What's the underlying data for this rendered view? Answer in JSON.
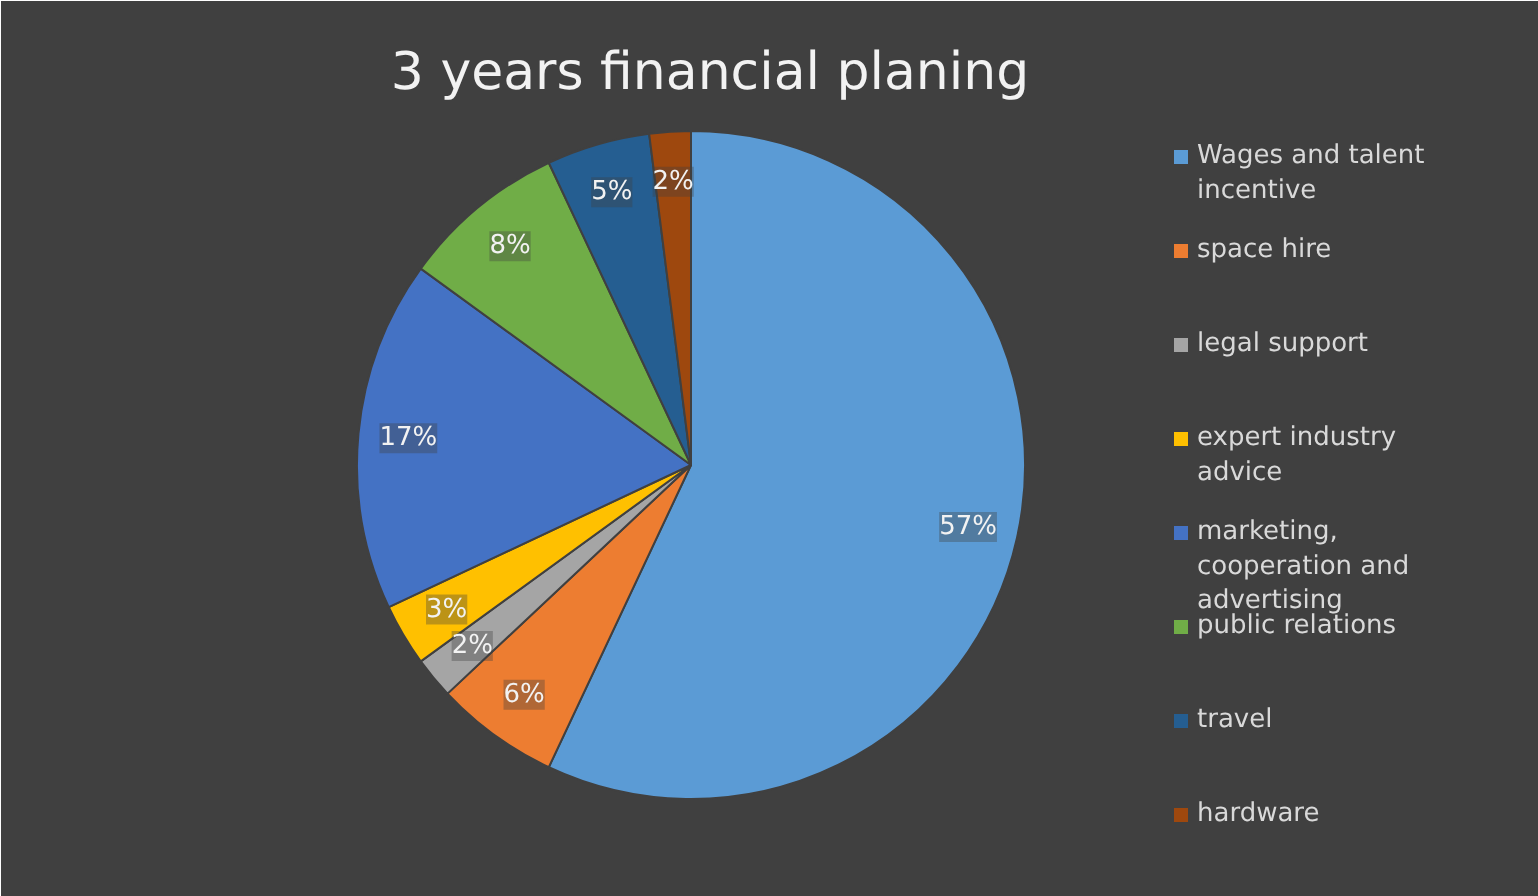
{
  "chart_data": {
    "type": "pie",
    "title": "3 years financial planing",
    "categories": [
      "Wages and talent incentive",
      "space hire",
      "legal support",
      "expert industry advice",
      "marketing, cooperation and advertising",
      "public relations",
      "travel",
      "hardware"
    ],
    "values": [
      57,
      6,
      2,
      3,
      17,
      8,
      5,
      2
    ],
    "colors": [
      "#5b9bd5",
      "#ed7d31",
      "#a5a5a5",
      "#ffc000",
      "#4472c4",
      "#70ad47",
      "#255e91",
      "#9e480e"
    ],
    "value_labels": [
      "57%",
      "6%",
      "2%",
      "3%",
      "17%",
      "8%",
      "5%",
      "2%"
    ],
    "legend": "right"
  }
}
